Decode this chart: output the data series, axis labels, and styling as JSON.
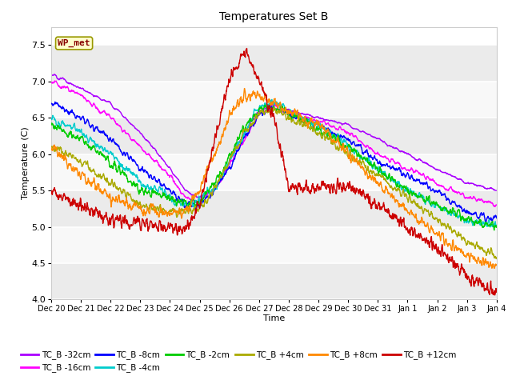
{
  "title": "Temperatures Set B",
  "xlabel": "Time",
  "ylabel": "Temperature (C)",
  "ylim": [
    4.0,
    7.75
  ],
  "yticks": [
    4.0,
    4.5,
    5.0,
    5.5,
    6.0,
    6.5,
    7.0,
    7.5
  ],
  "bg_color": "#ffffff",
  "plot_bg_light": "#f0f0f0",
  "plot_bg_dark": "#e0e0e0",
  "wp_met_label": "WP_met",
  "series": [
    {
      "label": "TC_B -32cm",
      "color": "#aa00ff"
    },
    {
      "label": "TC_B -16cm",
      "color": "#ff00ff"
    },
    {
      "label": "TC_B -8cm",
      "color": "#0000ff"
    },
    {
      "label": "TC_B -4cm",
      "color": "#00cccc"
    },
    {
      "label": "TC_B -2cm",
      "color": "#00cc00"
    },
    {
      "label": "TC_B +4cm",
      "color": "#aaaa00"
    },
    {
      "label": "TC_B +8cm",
      "color": "#ff8800"
    },
    {
      "label": "TC_B +12cm",
      "color": "#cc0000"
    }
  ],
  "xtick_labels": [
    "Dec 20",
    "Dec 21",
    "Dec 22",
    "Dec 23",
    "Dec 24",
    "Dec 25",
    "Dec 26",
    "Dec 27",
    "Dec 28",
    "Dec 29",
    "Dec 30",
    "Dec 31",
    "Jan 1",
    "Jan 2",
    "Jan 3",
    "Jan 4"
  ],
  "n_points": 2000,
  "n_days": 15
}
